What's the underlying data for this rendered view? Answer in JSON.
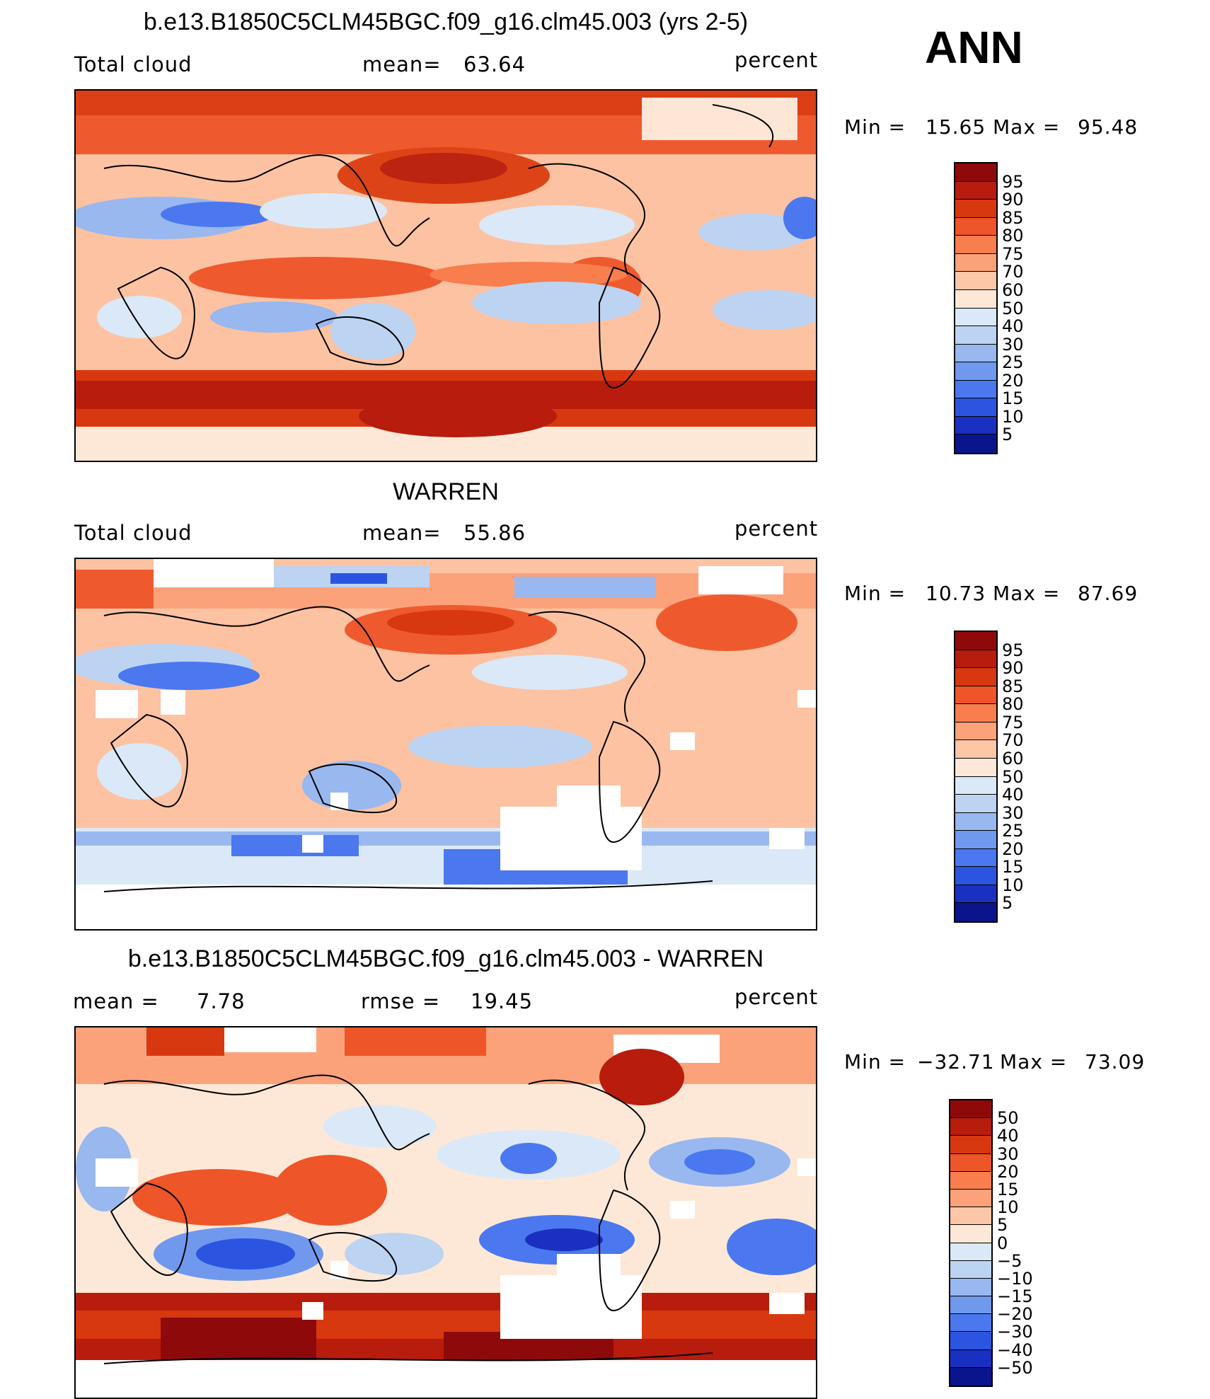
{
  "season": "ANN",
  "panels": [
    {
      "title": "b.e13.B1850C5CLM45BGC.f09_g16.clm45.003 (yrs 2-5)",
      "left_label": "Total cloud",
      "mid_label": "mean=",
      "mid_value": "63.64",
      "right_label": "percent",
      "min_label": "Min =",
      "min_value": "15.65",
      "max_label": "Max =",
      "max_value": "95.48",
      "levels": [
        "95",
        "90",
        "85",
        "80",
        "75",
        "70",
        "60",
        "50",
        "40",
        "30",
        "25",
        "20",
        "15",
        "10",
        "5"
      ],
      "colors": [
        "#8e0a0a",
        "#b81c0c",
        "#d83810",
        "#ee5528",
        "#f87e4e",
        "#fca27a",
        "#fdc6a7",
        "#fde8d8",
        "#dbe8f7",
        "#bcd3f2",
        "#98b8ef",
        "#7099ee",
        "#4b78ee",
        "#2b55e0",
        "#1a30c0",
        "#0a148c"
      ]
    },
    {
      "title": "WARREN",
      "left_label": "Total cloud",
      "mid_label": "mean=",
      "mid_value": "55.86",
      "right_label": "percent",
      "min_label": "Min =",
      "min_value": "10.73",
      "max_label": "Max =",
      "max_value": "87.69",
      "levels": [
        "95",
        "90",
        "85",
        "80",
        "75",
        "70",
        "60",
        "50",
        "40",
        "30",
        "25",
        "20",
        "15",
        "10",
        "5"
      ],
      "colors": [
        "#8e0a0a",
        "#b81c0c",
        "#d83810",
        "#ee5528",
        "#f87e4e",
        "#fca27a",
        "#fdc6a7",
        "#fde8d8",
        "#dbe8f7",
        "#bcd3f2",
        "#98b8ef",
        "#7099ee",
        "#4b78ee",
        "#2b55e0",
        "#1a30c0",
        "#0a148c"
      ]
    },
    {
      "title": "b.e13.B1850C5CLM45BGC.f09_g16.clm45.003 - WARREN",
      "left_label": "mean =",
      "left_value": "7.78",
      "mid_label": "rmse =",
      "mid_value": "19.45",
      "right_label": "percent",
      "min_label": "Min =",
      "min_value": "−32.71",
      "max_label": "Max =",
      "max_value": "73.09",
      "levels": [
        "50",
        "40",
        "30",
        "20",
        "15",
        "10",
        "5",
        "0",
        "−5",
        "−10",
        "−15",
        "−20",
        "−30",
        "−40",
        "−50"
      ],
      "colors": [
        "#8e0a0a",
        "#b81c0c",
        "#d83810",
        "#ee5528",
        "#f87e4e",
        "#fca27a",
        "#fdc6a7",
        "#fde8d8",
        "#dbe8f7",
        "#bcd3f2",
        "#98b8ef",
        "#7099ee",
        "#4b78ee",
        "#2b55e0",
        "#1a30c0",
        "#0a148c"
      ]
    }
  ]
}
